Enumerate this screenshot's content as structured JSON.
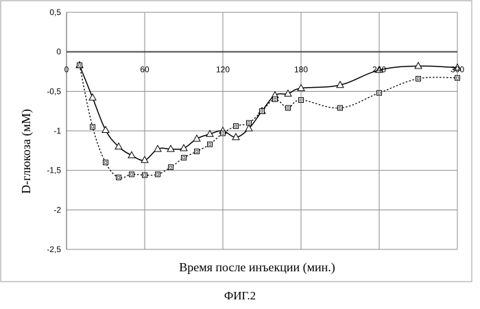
{
  "figure_caption": "ФИГ.2",
  "chart_data": {
    "type": "line",
    "title": "",
    "xlabel": "Время после инъекции (мин.)",
    "ylabel": "D-глюкоза (мМ)",
    "xlim": [
      0,
      300
    ],
    "ylim": [
      -2.5,
      0.5
    ],
    "x_ticks": [
      0,
      60,
      120,
      180,
      240,
      300
    ],
    "y_ticks": [
      0.5,
      0,
      -0.5,
      -1,
      -1.5,
      -2,
      -2.5
    ],
    "y_tick_labels": [
      "0,5",
      "0",
      "-0,5",
      "-1",
      "-1,5",
      "-2",
      "-2,5"
    ],
    "grid": true,
    "legend": "none",
    "series": [
      {
        "marker": "triangle-open",
        "line_style": "solid",
        "color": "#000000",
        "points": [
          [
            10,
            -0.17
          ],
          [
            20,
            -0.58
          ],
          [
            30,
            -0.99
          ],
          [
            40,
            -1.2
          ],
          [
            50,
            -1.31
          ],
          [
            60,
            -1.37
          ],
          [
            70,
            -1.23
          ],
          [
            80,
            -1.23
          ],
          [
            90,
            -1.22
          ],
          [
            100,
            -1.1
          ],
          [
            110,
            -1.04
          ],
          [
            120,
            -1.0
          ],
          [
            130,
            -1.08
          ],
          [
            140,
            -0.97
          ],
          [
            150,
            -0.75
          ],
          [
            160,
            -0.55
          ],
          [
            170,
            -0.53
          ],
          [
            180,
            -0.46
          ],
          [
            210,
            -0.42
          ],
          [
            240,
            -0.23
          ],
          [
            270,
            -0.18
          ],
          [
            300,
            -0.2
          ]
        ]
      },
      {
        "marker": "square-open",
        "line_style": "dotted",
        "color": "#000000",
        "points": [
          [
            10,
            -0.17
          ],
          [
            20,
            -0.95
          ],
          [
            30,
            -1.4
          ],
          [
            40,
            -1.59
          ],
          [
            50,
            -1.55
          ],
          [
            60,
            -1.56
          ],
          [
            70,
            -1.55
          ],
          [
            80,
            -1.46
          ],
          [
            90,
            -1.34
          ],
          [
            100,
            -1.26
          ],
          [
            110,
            -1.17
          ],
          [
            120,
            -1.03
          ],
          [
            130,
            -0.94
          ],
          [
            140,
            -0.9
          ],
          [
            150,
            -0.75
          ],
          [
            160,
            -0.6
          ],
          [
            170,
            -0.71
          ],
          [
            180,
            -0.61
          ],
          [
            210,
            -0.71
          ],
          [
            240,
            -0.52
          ],
          [
            270,
            -0.34
          ],
          [
            300,
            -0.33
          ]
        ]
      }
    ]
  }
}
